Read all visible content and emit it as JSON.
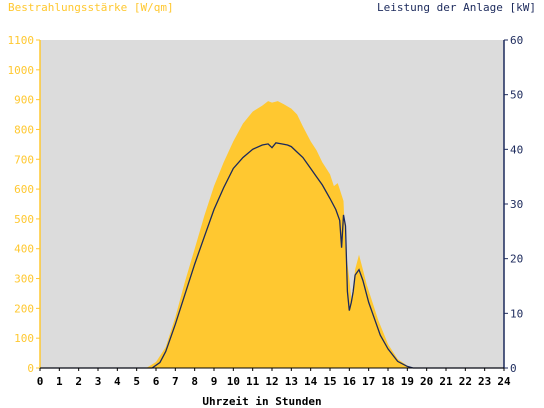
{
  "chart_data": {
    "type": "area",
    "title": "",
    "left_axis_label": "Bestrahlungsstärke [W/qm]",
    "right_axis_label": "Leistung der Anlage [kW]",
    "xlabel": "Uhrzeit in Stunden",
    "xlim": [
      0,
      24
    ],
    "ylim_left": [
      0,
      1100
    ],
    "ylim_right": [
      0,
      60
    ],
    "x_ticks": [
      "0",
      "1",
      "2",
      "3",
      "4",
      "5",
      "6",
      "7",
      "8",
      "9",
      "10",
      "11",
      "12",
      "13",
      "14",
      "15",
      "16",
      "17",
      "18",
      "19",
      "20",
      "21",
      "22",
      "23",
      "24"
    ],
    "y_ticks_left": [
      "0",
      "100",
      "200",
      "300",
      "400",
      "500",
      "600",
      "700",
      "800",
      "900",
      "1000",
      "1100"
    ],
    "y_ticks_right": [
      "0",
      "10",
      "20",
      "30",
      "40",
      "50",
      "60"
    ],
    "grid": false,
    "background_color": "#dcdcdc",
    "series": [
      {
        "name": "Bestrahlungsstärke [W/qm]",
        "axis": "left",
        "style": "area",
        "color": "#ffc830",
        "x": [
          0,
          5.5,
          6.0,
          6.5,
          7.0,
          7.5,
          8.0,
          8.5,
          9.0,
          9.5,
          10.0,
          10.5,
          11.0,
          11.5,
          11.8,
          12.0,
          12.3,
          12.6,
          13.0,
          13.3,
          13.6,
          14.0,
          14.3,
          14.6,
          15.0,
          15.2,
          15.4,
          15.5,
          15.7,
          15.8,
          15.9,
          16.0,
          16.1,
          16.2,
          16.3,
          16.5,
          16.7,
          16.9,
          17.2,
          17.5,
          18.0,
          18.5,
          19.0,
          19.3,
          24
        ],
        "y": [
          0,
          0,
          20,
          70,
          170,
          290,
          400,
          510,
          610,
          690,
          760,
          820,
          860,
          880,
          895,
          890,
          895,
          885,
          870,
          850,
          810,
          760,
          730,
          690,
          650,
          610,
          620,
          600,
          560,
          400,
          350,
          300,
          230,
          270,
          330,
          380,
          330,
          280,
          220,
          160,
          80,
          30,
          8,
          0,
          0
        ]
      },
      {
        "name": "Leistung der Anlage [kW]",
        "axis": "right",
        "style": "line",
        "color": "#1c2a5c",
        "x": [
          0,
          5.8,
          6.2,
          6.5,
          7.0,
          7.5,
          8.0,
          8.5,
          9.0,
          9.5,
          10.0,
          10.5,
          11.0,
          11.5,
          11.8,
          12.0,
          12.2,
          12.5,
          12.8,
          13.0,
          13.3,
          13.6,
          14.0,
          14.3,
          14.6,
          15.0,
          15.3,
          15.5,
          15.6,
          15.7,
          15.8,
          15.9,
          16.0,
          16.1,
          16.2,
          16.3,
          16.5,
          16.7,
          17.0,
          17.3,
          17.6,
          18.0,
          18.5,
          19.0,
          19.3,
          24
        ],
        "y": [
          0,
          0,
          1,
          3,
          8,
          13.5,
          19,
          24,
          29,
          33,
          36.5,
          38.5,
          40,
          40.8,
          41,
          40.3,
          41.2,
          41,
          40.8,
          40.5,
          39.5,
          38.5,
          36.5,
          35,
          33.5,
          31,
          29,
          27,
          22,
          28,
          26,
          14,
          10.5,
          12,
          14,
          17,
          18,
          16,
          12,
          9,
          6,
          3.5,
          1.2,
          0.3,
          0,
          0
        ]
      }
    ]
  }
}
